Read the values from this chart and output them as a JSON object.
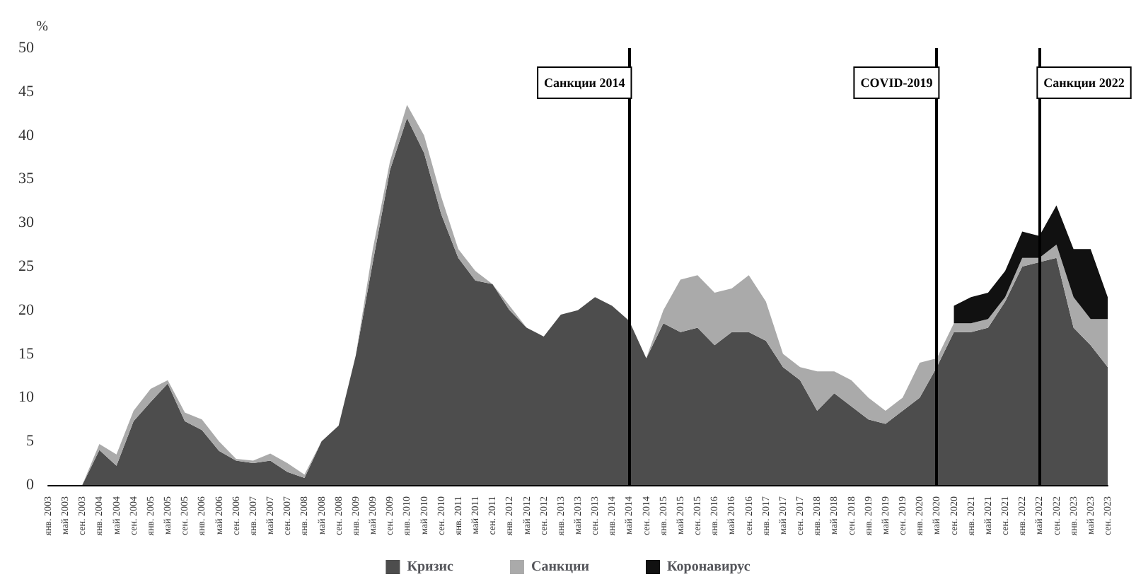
{
  "chart_data": {
    "type": "area",
    "stacked": true,
    "ylabel": "%",
    "ylim": [
      0,
      50
    ],
    "yticks": [
      0,
      5,
      10,
      15,
      20,
      25,
      30,
      35,
      40,
      45,
      50
    ],
    "grid": false,
    "legend": "bottom",
    "marker": "none",
    "categories": [
      "янв. 2003",
      "май 2003",
      "сен. 2003",
      "янв. 2004",
      "май 2004",
      "сен. 2004",
      "янв. 2005",
      "май 2005",
      "сен. 2005",
      "янв. 2006",
      "май 2006",
      "сен. 2006",
      "янв. 2007",
      "май 2007",
      "сен. 2007",
      "янв. 2008",
      "май 2008",
      "сен. 2008",
      "янв. 2009",
      "май 2009",
      "сен. 2009",
      "янв. 2010",
      "май 2010",
      "сен. 2010",
      "янв. 2011",
      "май 2011",
      "сен. 2011",
      "янв. 2012",
      "май 2012",
      "сен. 2012",
      "янв. 2013",
      "май 2013",
      "сен. 2013",
      "янв. 2014",
      "май 2014",
      "сен. 2014",
      "янв. 2015",
      "май 2015",
      "сен. 2015",
      "янв. 2016",
      "май 2016",
      "сен. 2016",
      "янв. 2017",
      "май 2017",
      "сен. 2017",
      "янв. 2018",
      "май 2018",
      "сен. 2018",
      "янв. 2019",
      "май 2019",
      "сен. 2019",
      "янв. 2020",
      "май 2020",
      "сен. 2020",
      "янв. 2021",
      "май 2021",
      "сен. 2021",
      "янв. 2022",
      "май 2022",
      "сен. 2022",
      "янв. 2023",
      "май 2023",
      "сен. 2023"
    ],
    "series": [
      {
        "name": "Кризис",
        "color": "#4d4d4d",
        "values": [
          0,
          0,
          0,
          4,
          2.2,
          7.3,
          9.5,
          11.6,
          7.3,
          6.3,
          3.9,
          2.8,
          2.5,
          2.8,
          1.5,
          0.8,
          5,
          6.8,
          14.8,
          25.5,
          36,
          42,
          38,
          31,
          26,
          23.4,
          23,
          20,
          18,
          17,
          19.5,
          20,
          21.5,
          20.5,
          18.8,
          14.5,
          18.5,
          17.5,
          18,
          16,
          17.5,
          17.5,
          16.5,
          13.5,
          12,
          8.5,
          10.5,
          9,
          7.5,
          7,
          8.5,
          10,
          13.5,
          17.5,
          17.5,
          18,
          21,
          25,
          25.5,
          26,
          18,
          16,
          13.5
        ]
      },
      {
        "name": "Санкции",
        "color": "#aaaaaa",
        "values": [
          0,
          0,
          0,
          0.7,
          1.3,
          1.2,
          1.5,
          0.4,
          1,
          1.2,
          1.1,
          0.2,
          0.3,
          0.8,
          1,
          0.4,
          0,
          0,
          0,
          1.5,
          1,
          1.5,
          2,
          2,
          1,
          1.1,
          0,
          0.5,
          0,
          0,
          0,
          0,
          0,
          0,
          0,
          0,
          1.5,
          6,
          6,
          6,
          5,
          6.5,
          4.5,
          1.5,
          1.5,
          4.5,
          2.5,
          3,
          2.5,
          1.5,
          1.5,
          4,
          1,
          1,
          1,
          1,
          0.5,
          1,
          0.5,
          1.5,
          3.5,
          3,
          5.5
        ]
      },
      {
        "name": "Коронавирус",
        "color": "#111111",
        "values": [
          null,
          null,
          null,
          null,
          null,
          null,
          null,
          null,
          null,
          null,
          null,
          null,
          null,
          null,
          null,
          null,
          null,
          null,
          null,
          null,
          null,
          null,
          null,
          null,
          null,
          null,
          null,
          null,
          null,
          null,
          null,
          null,
          null,
          null,
          null,
          null,
          null,
          null,
          null,
          null,
          null,
          null,
          null,
          null,
          null,
          null,
          null,
          null,
          null,
          null,
          null,
          null,
          null,
          2,
          3,
          3,
          3,
          3,
          2.5,
          4.5,
          5.5,
          8,
          2.5
        ]
      }
    ],
    "ref_lines": [
      {
        "axis": "x",
        "value": "май 2014",
        "label": "Санкции 2014",
        "color": "#000000"
      },
      {
        "axis": "x",
        "value": "май 2020",
        "label": "COVID-2019",
        "color": "#000000"
      },
      {
        "axis": "x",
        "value": "май 2022",
        "label": "Санкции 2022",
        "color": "#000000"
      }
    ]
  }
}
